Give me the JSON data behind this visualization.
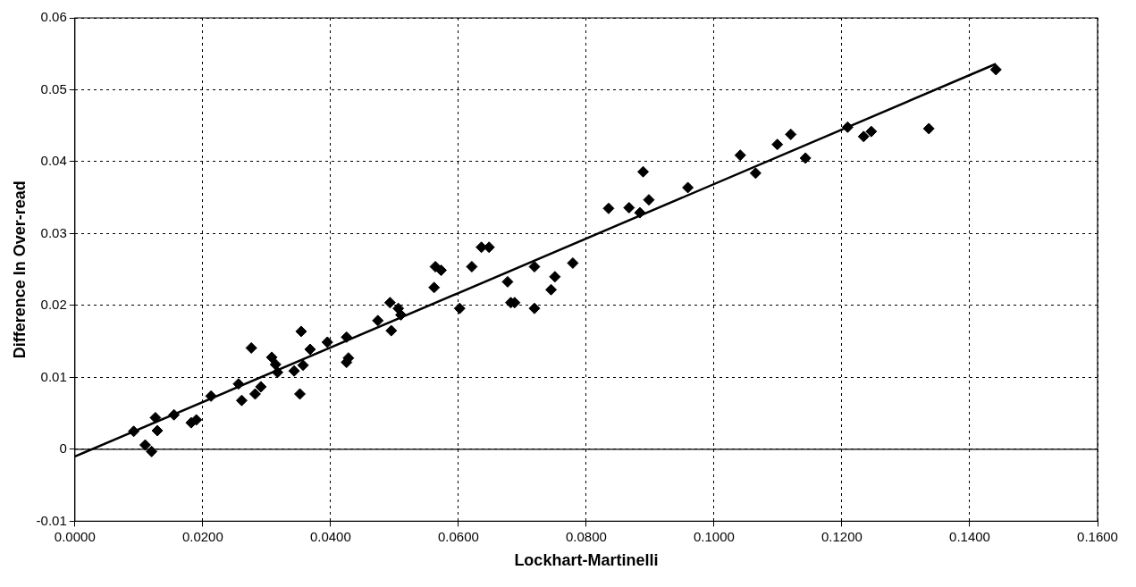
{
  "chart_data": {
    "type": "scatter",
    "xlabel": "Lockhart-Martinelli",
    "ylabel": "Difference In Over-read",
    "xlim": [
      0,
      0.16
    ],
    "ylim": [
      -0.01,
      0.06
    ],
    "xticks": [
      {
        "value": 0,
        "label": "0.0000"
      },
      {
        "value": 0.02,
        "label": "0.0200"
      },
      {
        "value": 0.04,
        "label": "0.0400"
      },
      {
        "value": 0.06,
        "label": "0.0600"
      },
      {
        "value": 0.08,
        "label": "0.0800"
      },
      {
        "value": 0.1,
        "label": "0.1000"
      },
      {
        "value": 0.12,
        "label": "0.1200"
      },
      {
        "value": 0.14,
        "label": "0.1400"
      },
      {
        "value": 0.16,
        "label": "0.1600"
      }
    ],
    "yticks": [
      -0.01,
      0,
      0.01,
      0.02,
      0.03,
      0.04,
      0.05,
      0.06
    ],
    "grid": true,
    "legend": false,
    "marker": "diamond",
    "ref_lines": [
      {
        "axis": "y",
        "value": 0,
        "color": "#000000",
        "line_style": "solid"
      }
    ],
    "series": [
      {
        "color": "#000000",
        "x": [
          0.0092,
          0.011,
          0.012,
          0.0126,
          0.0129,
          0.0155,
          0.0182,
          0.019,
          0.0213,
          0.0256,
          0.0261,
          0.0276,
          0.0282,
          0.0291,
          0.0308,
          0.0314,
          0.0317,
          0.0343,
          0.0352,
          0.0354,
          0.0357,
          0.0368,
          0.0395,
          0.0425,
          0.0425,
          0.0428,
          0.0474,
          0.0493,
          0.0495,
          0.0506,
          0.051,
          0.0562,
          0.0564,
          0.0573,
          0.0602,
          0.0621,
          0.0636,
          0.0648,
          0.0677,
          0.0682,
          0.0688,
          0.0719,
          0.0719,
          0.0745,
          0.0751,
          0.0779,
          0.0835,
          0.0867,
          0.0884,
          0.0889,
          0.0898,
          0.0959,
          0.1041,
          0.1065,
          0.1099,
          0.112,
          0.1143,
          0.1209,
          0.1234,
          0.1246,
          0.1336,
          0.1441
        ],
        "values": [
          0.0025,
          0.0006,
          -0.0003,
          0.0044,
          0.0026,
          0.0048,
          0.0037,
          0.0041,
          0.0074,
          0.0091,
          0.0068,
          0.0141,
          0.0077,
          0.0087,
          0.0128,
          0.0118,
          0.0107,
          0.0109,
          0.0077,
          0.0164,
          0.0117,
          0.0139,
          0.0149,
          0.0156,
          0.0121,
          0.0127,
          0.0179,
          0.0204,
          0.0165,
          0.0196,
          0.0187,
          0.0225,
          0.0254,
          0.0249,
          0.0196,
          0.0254,
          0.0281,
          0.0281,
          0.0233,
          0.0204,
          0.0204,
          0.0254,
          0.0196,
          0.0222,
          0.024,
          0.0259,
          0.0335,
          0.0336,
          0.0329,
          0.0386,
          0.0347,
          0.0364,
          0.0409,
          0.0384,
          0.0424,
          0.0438,
          0.0405,
          0.0448,
          0.0435,
          0.0442,
          0.0446,
          0.0528
        ]
      },
      {
        "type": "line",
        "color": "#000000",
        "marker": "none",
        "line_style": "solid",
        "x": [
          0,
          0.1441
        ],
        "values": [
          -0.001,
          0.0536
        ]
      }
    ]
  }
}
